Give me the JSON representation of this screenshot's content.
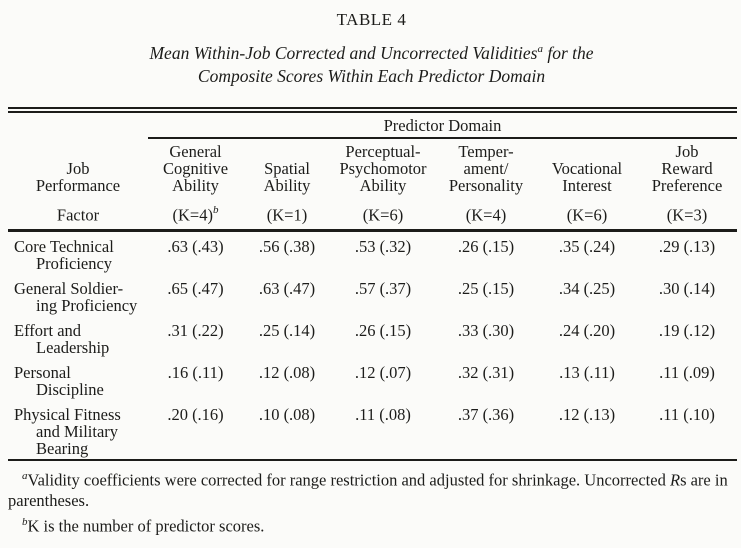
{
  "colors": {
    "ink": "#1c1c1a",
    "paper": "#fbfbf9"
  },
  "title": "TABLE 4",
  "subtitle": {
    "line1_pre": "Mean Within-Job Corrected and Uncorrected Validities",
    "line1_sup": "a",
    "line1_post": " for the",
    "line2": "Composite Scores Within Each Predictor Domain"
  },
  "table": {
    "spanner": "Predictor Domain",
    "columns": [
      {
        "l1": "",
        "l2": "Job",
        "l3": "Performance",
        "k": "Factor",
        "ksup": ""
      },
      {
        "l1": "General",
        "l2": "Cognitive",
        "l3": "Ability",
        "k": "(K=4)",
        "ksup": "b"
      },
      {
        "l1": "",
        "l2": "Spatial",
        "l3": "Ability",
        "k": "(K=1)",
        "ksup": ""
      },
      {
        "l1": "Perceptual-",
        "l2": "Psychomotor",
        "l3": "Ability",
        "k": "(K=6)",
        "ksup": ""
      },
      {
        "l1": "Temper-",
        "l2": "ament/",
        "l3": "Personality",
        "k": "(K=4)",
        "ksup": ""
      },
      {
        "l1": "",
        "l2": "Vocational",
        "l3": "Interest",
        "k": "(K=6)",
        "ksup": ""
      },
      {
        "l1": "Job",
        "l2": "Reward",
        "l3": "Preference",
        "k": "(K=3)",
        "ksup": ""
      }
    ],
    "rows": [
      {
        "l1": "Core Technical",
        "l2": "Proficiency",
        "l3": "",
        "values": [
          ".63 (.43)",
          ".56 (.38)",
          ".53 (.32)",
          ".26 (.15)",
          ".35 (.24)",
          ".29 (.13)"
        ]
      },
      {
        "l1": "General Soldier-",
        "l2": "ing Proficiency",
        "l3": "",
        "values": [
          ".65 (.47)",
          ".63 (.47)",
          ".57 (.37)",
          ".25 (.15)",
          ".34 (.25)",
          ".30 (.14)"
        ]
      },
      {
        "l1": "Effort and",
        "l2": "Leadership",
        "l3": "",
        "values": [
          ".31 (.22)",
          ".25 (.14)",
          ".26 (.15)",
          ".33 (.30)",
          ".24 (.20)",
          ".19 (.12)"
        ]
      },
      {
        "l1": "Personal",
        "l2": "Discipline",
        "l3": "",
        "values": [
          ".16 (.11)",
          ".12 (.08)",
          ".12 (.07)",
          ".32 (.31)",
          ".13 (.11)",
          ".11 (.09)"
        ]
      },
      {
        "l1": "Physical Fitness",
        "l2": "and Military",
        "l3": "Bearing",
        "values": [
          ".20 (.16)",
          ".10 (.08)",
          ".11 (.08)",
          ".37 (.36)",
          ".12 (.13)",
          ".11 (.10)"
        ]
      }
    ]
  },
  "footnotes": {
    "a_sup": "a",
    "a_text1": "Validity coefficients were corrected for range restriction and adjusted for shrinkage. Uncorrected ",
    "a_italic": "R",
    "a_text2": "s are in parentheses.",
    "b_sup": "b",
    "b_text": "K is the number of predictor scores."
  }
}
